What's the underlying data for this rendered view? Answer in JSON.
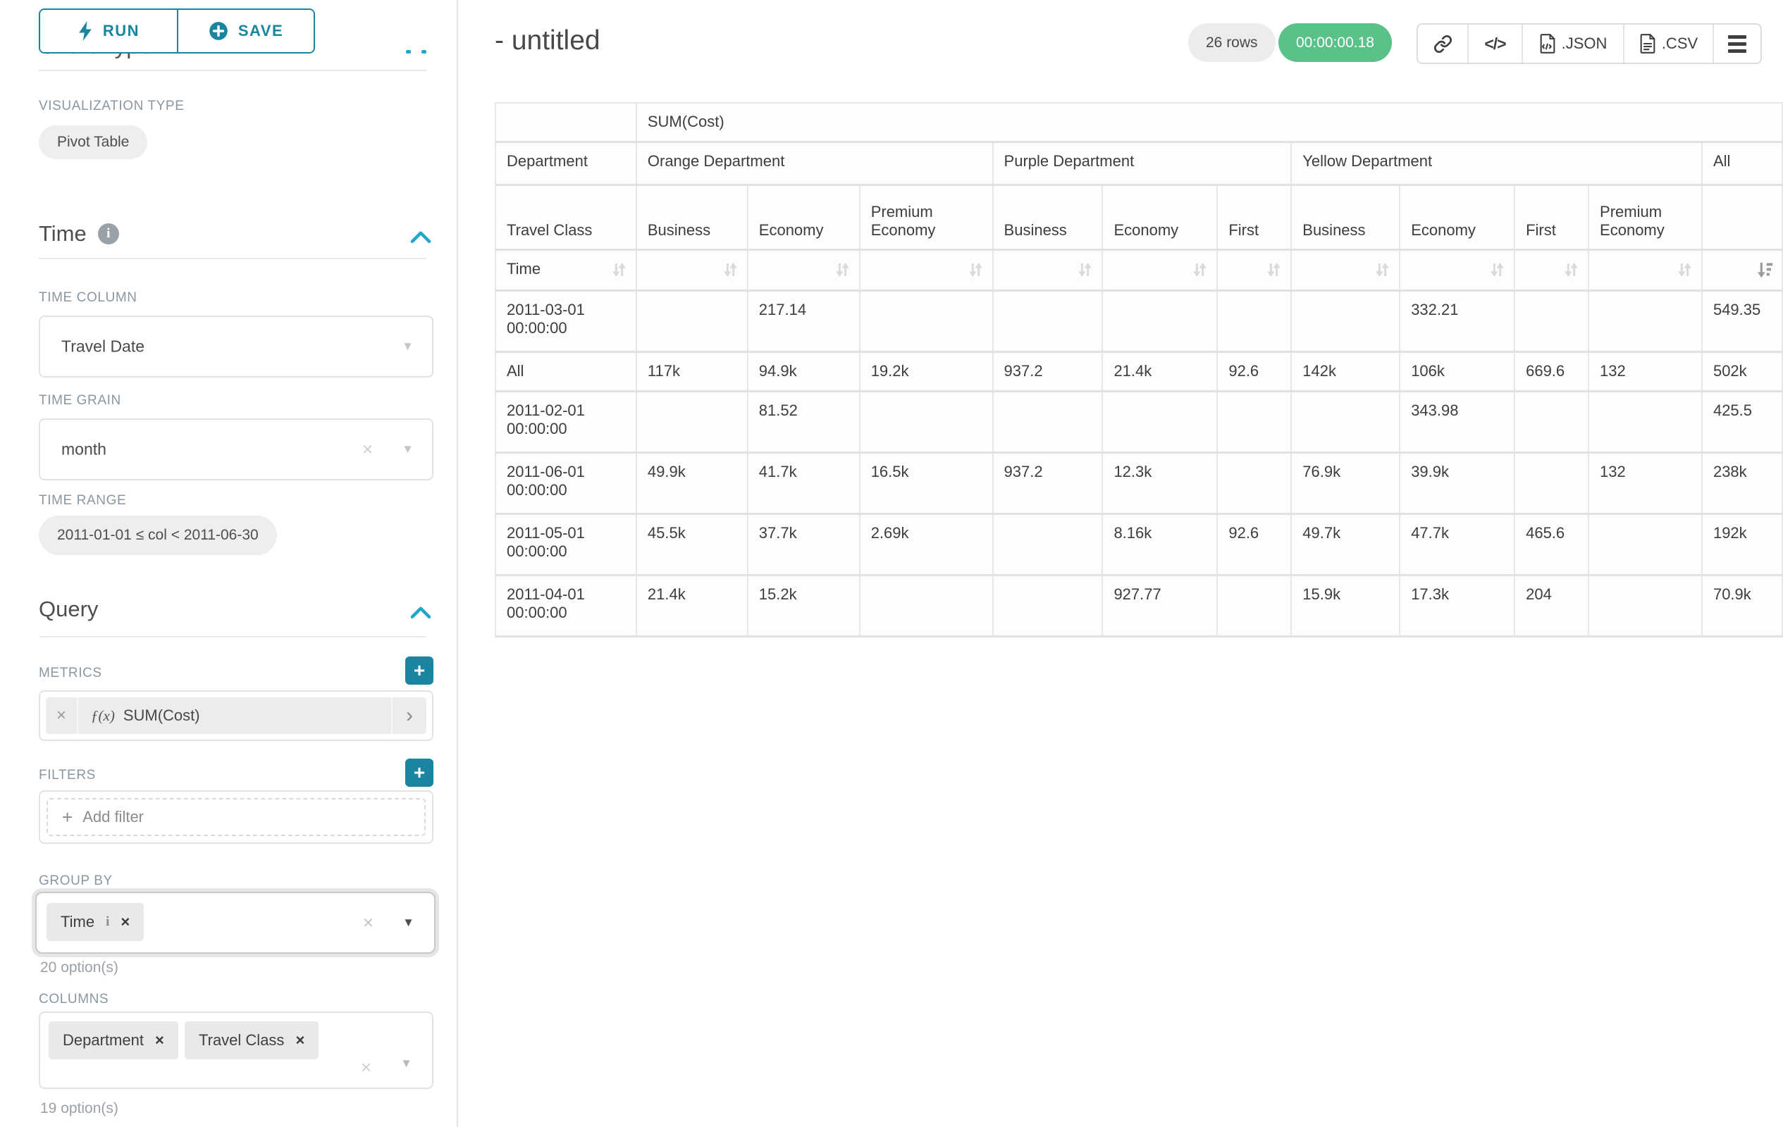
{
  "sidebar": {
    "run_label": "RUN",
    "save_label": "SAVE",
    "chart_type_heading": "Chart Type",
    "visualization_type_label": "VISUALIZATION TYPE",
    "visualization_type_value": "Pivot Table",
    "time": {
      "heading": "Time",
      "time_column_label": "TIME COLUMN",
      "time_column_value": "Travel Date",
      "time_grain_label": "TIME GRAIN",
      "time_grain_value": "month",
      "time_range_label": "TIME RANGE",
      "time_range_value": "2011-01-01 ≤ col < 2011-06-30"
    },
    "query": {
      "heading": "Query",
      "metrics_label": "METRICS",
      "metric_value": "SUM(Cost)",
      "filters_label": "FILTERS",
      "add_filter_label": "Add filter",
      "group_by_label": "GROUP BY",
      "group_by_value": "Time",
      "group_by_options": "20 option(s)",
      "columns_label": "COLUMNS",
      "columns_values": [
        "Department",
        "Travel Class"
      ],
      "columns_options": "19 option(s)"
    }
  },
  "header": {
    "title": "- untitled",
    "row_count_badge": "26 rows",
    "query_timer": "00:00:00.18",
    "json_label": ".JSON",
    "csv_label": ".CSV"
  },
  "glyphs": {
    "clear": "×",
    "caret": "▼",
    "plus": "+",
    "chevron_right": "›",
    "fx": "ƒ(x)",
    "code": "</>",
    "info": "i"
  },
  "colors": {
    "primary_teal": "#1985a0",
    "accent_blue": "#20a7c9",
    "timer_green": "#5ac189"
  },
  "chart_data": {
    "type": "table",
    "metric_header": "SUM(Cost)",
    "column_dimension": "Department",
    "row_dimension_header": "Travel Class",
    "row_axis": "Time",
    "sorted_column": "All",
    "sort_direction": "desc",
    "groups": [
      {
        "label": "Orange Department",
        "columns": [
          "Business",
          "Economy",
          "Premium Economy"
        ]
      },
      {
        "label": "Purple Department",
        "columns": [
          "Business",
          "Economy",
          "First"
        ]
      },
      {
        "label": "Yellow Department",
        "columns": [
          "Business",
          "Economy",
          "First",
          "Premium Economy"
        ]
      },
      {
        "label": "All",
        "columns": [
          ""
        ]
      }
    ],
    "rows": [
      {
        "label": "2011-03-01 00:00:00",
        "values": [
          "",
          "217.14",
          "",
          "",
          "",
          "",
          "",
          "332.21",
          "",
          "",
          "549.35"
        ]
      },
      {
        "label": "All",
        "values": [
          "117k",
          "94.9k",
          "19.2k",
          "937.2",
          "21.4k",
          "92.6",
          "142k",
          "106k",
          "669.6",
          "132",
          "502k"
        ]
      },
      {
        "label": "2011-02-01 00:00:00",
        "values": [
          "",
          "81.52",
          "",
          "",
          "",
          "",
          "",
          "343.98",
          "",
          "",
          "425.5"
        ]
      },
      {
        "label": "2011-06-01 00:00:00",
        "values": [
          "49.9k",
          "41.7k",
          "16.5k",
          "937.2",
          "12.3k",
          "",
          "76.9k",
          "39.9k",
          "",
          "132",
          "238k"
        ]
      },
      {
        "label": "2011-05-01 00:00:00",
        "values": [
          "45.5k",
          "37.7k",
          "2.69k",
          "",
          "8.16k",
          "92.6",
          "49.7k",
          "47.7k",
          "465.6",
          "",
          "192k"
        ]
      },
      {
        "label": "2011-04-01 00:00:00",
        "values": [
          "21.4k",
          "15.2k",
          "",
          "",
          "927.77",
          "",
          "15.9k",
          "17.3k",
          "204",
          "",
          "70.9k"
        ]
      }
    ]
  }
}
